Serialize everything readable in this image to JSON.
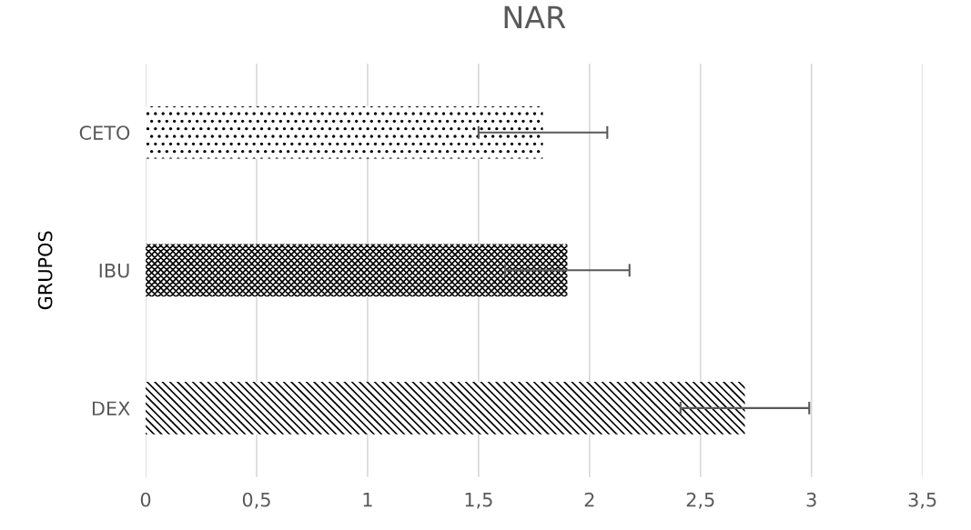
{
  "chart_data": {
    "type": "bar",
    "orientation": "horizontal",
    "title": "NAR",
    "ylabel": "GRUPOS",
    "categories": [
      "CETO",
      "IBU",
      "DEX"
    ],
    "values": [
      1.79,
      1.9,
      2.7
    ],
    "errors": [
      0.29,
      0.28,
      0.29
    ],
    "color": "#000000",
    "xlim": [
      0,
      3.5
    ],
    "xticks": [
      0,
      {
        "value": 0.5,
        "label": "0,5"
      },
      1,
      {
        "value": 1.5,
        "label": "1,5"
      },
      2,
      {
        "value": 2.5,
        "label": "2,5"
      },
      3,
      {
        "value": 3.5,
        "label": "3,5"
      }
    ],
    "grid": "x",
    "legend": false
  }
}
